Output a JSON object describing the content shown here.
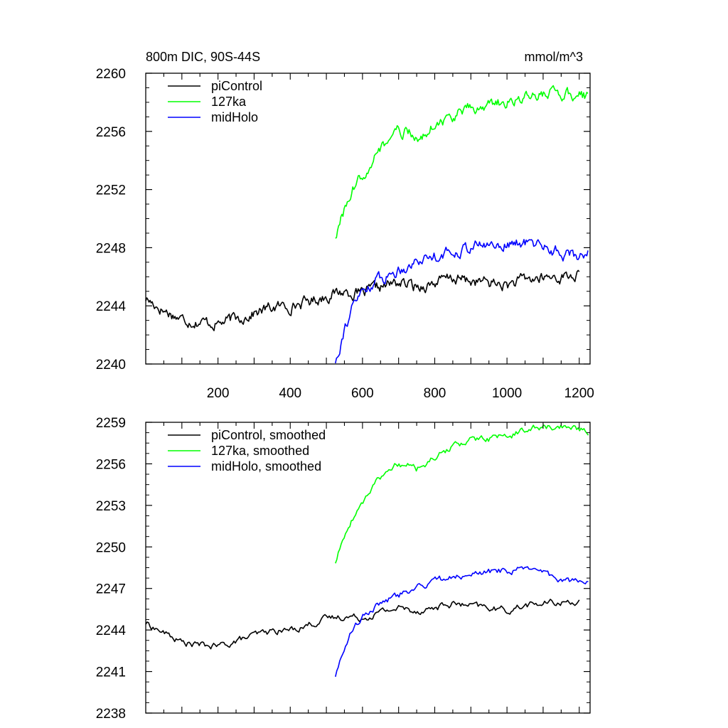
{
  "chart_data": [
    {
      "type": "line",
      "title_left": "800m DIC, 90S-44S",
      "title_right": "mmol/m^3",
      "xlim": [
        0,
        1230
      ],
      "ylim": [
        2240,
        2260
      ],
      "xticks": [
        200,
        400,
        600,
        800,
        1000,
        1200
      ],
      "yticks": [
        2240,
        2244,
        2248,
        2252,
        2256,
        2260
      ],
      "ytick_labels": [
        "2240",
        "2244",
        "2248",
        "2252",
        "2256",
        "2260"
      ],
      "show_x_tick_labels": true,
      "legend_position": "top-left",
      "noise": 0.45,
      "series": [
        {
          "name": "piControl",
          "color": "#000000",
          "x": [
            0,
            50,
            100,
            150,
            200,
            250,
            300,
            350,
            400,
            450,
            500,
            550,
            600,
            650,
            700,
            750,
            800,
            850,
            900,
            950,
            1000,
            1050,
            1100,
            1150,
            1200
          ],
          "y": [
            2244.5,
            2243.7,
            2243.1,
            2242.9,
            2242.8,
            2243.1,
            2243.5,
            2243.9,
            2244.0,
            2244.3,
            2244.7,
            2245.0,
            2244.8,
            2245.3,
            2245.6,
            2245.3,
            2245.6,
            2245.9,
            2245.7,
            2245.6,
            2245.4,
            2245.8,
            2245.9,
            2246.0,
            2246.1
          ]
        },
        {
          "name": "127ka",
          "color": "#00ff00",
          "x": [
            525,
            550,
            575,
            600,
            625,
            650,
            675,
            700,
            725,
            750,
            775,
            800,
            850,
            900,
            950,
            1000,
            1050,
            1100,
            1150,
            1200,
            1225
          ],
          "y": [
            2248.8,
            2250.5,
            2252.0,
            2253.0,
            2254.0,
            2254.8,
            2255.4,
            2256.0,
            2255.9,
            2255.5,
            2256.0,
            2256.5,
            2257.0,
            2257.6,
            2257.8,
            2258.0,
            2258.3,
            2258.6,
            2258.6,
            2258.5,
            2258.4
          ]
        },
        {
          "name": "midHolo",
          "color": "#0000ff",
          "x": [
            525,
            550,
            575,
            600,
            625,
            650,
            675,
            700,
            725,
            750,
            775,
            800,
            850,
            900,
            950,
            1000,
            1050,
            1100,
            1150,
            1200,
            1225
          ],
          "y": [
            2240.2,
            2242.5,
            2244.0,
            2245.0,
            2245.5,
            2245.9,
            2246.1,
            2246.5,
            2246.8,
            2247.1,
            2247.3,
            2247.5,
            2247.7,
            2248.1,
            2248.2,
            2248.3,
            2248.3,
            2248.2,
            2247.6,
            2247.4,
            2247.8
          ]
        }
      ]
    },
    {
      "type": "line",
      "xlim": [
        0,
        1230
      ],
      "ylim": [
        2238,
        2259
      ],
      "xticks": [
        200,
        400,
        600,
        800,
        1000,
        1200
      ],
      "yticks": [
        2238,
        2241,
        2244,
        2247,
        2250,
        2253,
        2256,
        2259
      ],
      "ytick_labels": [
        "2238",
        "2241",
        "2244",
        "2247",
        "2250",
        "2253",
        "2256",
        "2259"
      ],
      "show_x_tick_labels": false,
      "legend_position": "top-left",
      "noise": 0.28,
      "series": [
        {
          "name": "piControl, smoothed",
          "color": "#000000",
          "x": [
            0,
            50,
            100,
            150,
            200,
            250,
            300,
            350,
            400,
            450,
            500,
            550,
            600,
            650,
            700,
            750,
            800,
            850,
            900,
            950,
            1000,
            1050,
            1100,
            1150,
            1200
          ],
          "y": [
            2244.5,
            2243.8,
            2243.1,
            2242.9,
            2242.8,
            2243.2,
            2243.6,
            2243.9,
            2244.0,
            2244.4,
            2244.8,
            2245.0,
            2244.9,
            2245.3,
            2245.6,
            2245.4,
            2245.6,
            2245.9,
            2245.7,
            2245.6,
            2245.4,
            2245.8,
            2245.9,
            2246.0,
            2246.1
          ]
        },
        {
          "name": "127ka, smoothed",
          "color": "#00ff00",
          "x": [
            525,
            550,
            575,
            600,
            625,
            650,
            675,
            700,
            725,
            750,
            775,
            800,
            850,
            900,
            950,
            1000,
            1050,
            1100,
            1150,
            1200,
            1225
          ],
          "y": [
            2248.9,
            2250.8,
            2252.2,
            2253.2,
            2254.2,
            2255.0,
            2255.6,
            2256.0,
            2255.9,
            2255.6,
            2256.0,
            2256.5,
            2257.2,
            2257.7,
            2257.8,
            2258.0,
            2258.4,
            2258.7,
            2258.7,
            2258.5,
            2258.4
          ]
        },
        {
          "name": "midHolo, smoothed",
          "color": "#0000ff",
          "x": [
            525,
            550,
            575,
            600,
            625,
            650,
            675,
            700,
            725,
            750,
            775,
            800,
            850,
            900,
            950,
            1000,
            1050,
            1100,
            1150,
            1200,
            1225
          ],
          "y": [
            2240.7,
            2242.8,
            2244.2,
            2245.0,
            2245.6,
            2245.9,
            2246.2,
            2246.5,
            2246.8,
            2247.1,
            2247.3,
            2247.5,
            2247.8,
            2248.1,
            2248.2,
            2248.3,
            2248.4,
            2248.2,
            2247.6,
            2247.4,
            2247.8
          ]
        }
      ]
    }
  ]
}
